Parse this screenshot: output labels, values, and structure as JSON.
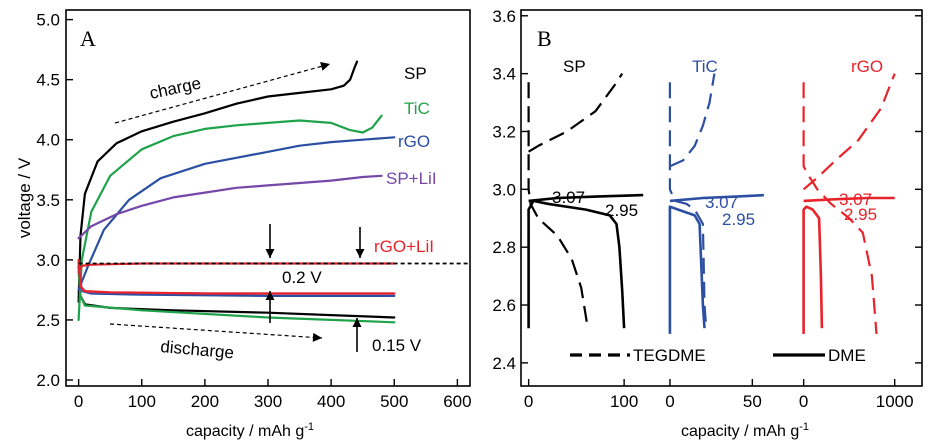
{
  "chart_data": [
    {
      "type": "line",
      "panel_label": "A",
      "xlabel": "capacity / mAh g",
      "xlabel_sup": "-1",
      "ylabel": "voltage / V",
      "xlim": [
        -20,
        620
      ],
      "ylim": [
        1.95,
        5.08
      ],
      "x_ticks": [
        "0",
        "100",
        "200",
        "300",
        "400",
        "500",
        "600"
      ],
      "y_ticks": [
        "2.0",
        "2.5",
        "3.0",
        "3.5",
        "4.0",
        "4.5",
        "5.0"
      ],
      "grid": false,
      "annotations": {
        "charge": "charge",
        "discharge": "discharge",
        "gap_a": "0.2 V",
        "gap_b": "0.15 V"
      },
      "reference_line_y": 2.97,
      "series": [
        {
          "name": "SP",
          "color": "#000000",
          "charge": [
            [
              0,
              2.65
            ],
            [
              3,
              3.2
            ],
            [
              10,
              3.55
            ],
            [
              30,
              3.82
            ],
            [
              60,
              3.97
            ],
            [
              100,
              4.07
            ],
            [
              150,
              4.15
            ],
            [
              200,
              4.22
            ],
            [
              250,
              4.3
            ],
            [
              300,
              4.36
            ],
            [
              350,
              4.39
            ],
            [
              400,
              4.42
            ],
            [
              420,
              4.45
            ],
            [
              430,
              4.5
            ],
            [
              437,
              4.6
            ],
            [
              441,
              4.65
            ]
          ],
          "discharge": [
            [
              0,
              2.95
            ],
            [
              3,
              2.7
            ],
            [
              10,
              2.63
            ],
            [
              50,
              2.6
            ],
            [
              150,
              2.58
            ],
            [
              300,
              2.56
            ],
            [
              400,
              2.54
            ],
            [
              500,
              2.52
            ]
          ]
        },
        {
          "name": "TiC",
          "color": "#1fa34a",
          "charge": [
            [
              0,
              2.5
            ],
            [
              5,
              3.0
            ],
            [
              20,
              3.4
            ],
            [
              50,
              3.7
            ],
            [
              100,
              3.92
            ],
            [
              150,
              4.03
            ],
            [
              200,
              4.09
            ],
            [
              250,
              4.12
            ],
            [
              300,
              4.14
            ],
            [
              350,
              4.16
            ],
            [
              400,
              4.14
            ],
            [
              430,
              4.08
            ],
            [
              450,
              4.06
            ],
            [
              465,
              4.1
            ],
            [
              480,
              4.2
            ]
          ],
          "discharge": [
            [
              0,
              2.9
            ],
            [
              3,
              2.7
            ],
            [
              10,
              2.62
            ],
            [
              100,
              2.58
            ],
            [
              300,
              2.52
            ],
            [
              400,
              2.5
            ],
            [
              500,
              2.48
            ]
          ]
        },
        {
          "name": "rGO",
          "color": "#2c4fa3",
          "charge": [
            [
              0,
              2.75
            ],
            [
              15,
              2.95
            ],
            [
              40,
              3.25
            ],
            [
              80,
              3.5
            ],
            [
              130,
              3.68
            ],
            [
              200,
              3.8
            ],
            [
              250,
              3.85
            ],
            [
              300,
              3.9
            ],
            [
              350,
              3.95
            ],
            [
              400,
              3.98
            ],
            [
              450,
              4.0
            ],
            [
              500,
              4.02
            ]
          ],
          "discharge": [
            [
              0,
              2.95
            ],
            [
              5,
              2.74
            ],
            [
              20,
              2.72
            ],
            [
              100,
              2.71
            ],
            [
              300,
              2.7
            ],
            [
              500,
              2.7
            ]
          ]
        },
        {
          "name": "SP+LiI",
          "color": "#7447a8",
          "charge": [
            [
              0,
              3.18
            ],
            [
              20,
              3.28
            ],
            [
              60,
              3.38
            ],
            [
              100,
              3.45
            ],
            [
              150,
              3.52
            ],
            [
              200,
              3.56
            ],
            [
              250,
              3.6
            ],
            [
              300,
              3.62
            ],
            [
              350,
              3.64
            ],
            [
              400,
              3.66
            ],
            [
              450,
              3.69
            ],
            [
              480,
              3.7
            ]
          ],
          "discharge": [
            [
              0,
              2.98
            ],
            [
              5,
              2.74
            ],
            [
              20,
              2.73
            ],
            [
              200,
              2.72
            ],
            [
              500,
              2.72
            ]
          ]
        },
        {
          "name": "rGO+LiI",
          "color": "#e8232a",
          "charge": [
            [
              0,
              2.9
            ],
            [
              5,
              2.95
            ],
            [
              20,
              2.96
            ],
            [
              100,
              2.97
            ],
            [
              300,
              2.97
            ],
            [
              500,
              2.97
            ]
          ],
          "discharge": [
            [
              0,
              3.0
            ],
            [
              3,
              2.78
            ],
            [
              10,
              2.74
            ],
            [
              50,
              2.73
            ],
            [
              200,
              2.72
            ],
            [
              500,
              2.72
            ]
          ]
        }
      ]
    },
    {
      "type": "line",
      "panel_label": "B",
      "xlabel": "capacity / mAh g",
      "xlabel_sup": "-1",
      "ylim": [
        2.32,
        3.62
      ],
      "y_ticks": [
        "2.4",
        "2.6",
        "2.8",
        "3.0",
        "3.2",
        "3.4",
        "3.6"
      ],
      "x_ticks": [
        {
          "group": "SP",
          "label": "0"
        },
        {
          "group": "SP",
          "label": "100"
        },
        {
          "group": "TiC",
          "label": "0"
        },
        {
          "group": "TiC",
          "label": "50"
        },
        {
          "group": "rGO",
          "label": "0"
        },
        {
          "group": "rGO",
          "label": "1000"
        }
      ],
      "grid": false,
      "legend": {
        "placement": "bottom",
        "dashed": "TEGDME",
        "solid": "DME"
      },
      "annotations": {
        "sp_a": "3.07",
        "sp_b": "2.95",
        "tic_a": "3.07",
        "tic_b": "2.95",
        "rgo_a": "3.07",
        "rgo_b": "2.95"
      },
      "groups": [
        {
          "name": "SP",
          "color": "#000000",
          "xrange": [
            -8,
            125
          ],
          "tegdme": {
            "discharge": [
              [
                0,
                3.37
              ],
              [
                0,
                3.0
              ],
              [
                2,
                2.95
              ],
              [
                10,
                2.9
              ],
              [
                30,
                2.84
              ],
              [
                45,
                2.76
              ],
              [
                55,
                2.66
              ],
              [
                62,
                2.52
              ]
            ],
            "charge": [
              [
                0,
                3.13
              ],
              [
                10,
                3.15
              ],
              [
                40,
                3.2
              ],
              [
                70,
                3.27
              ],
              [
                90,
                3.36
              ],
              [
                98,
                3.4
              ]
            ]
          },
          "dme": {
            "discharge": [
              [
                0,
                2.52
              ],
              [
                0,
                2.93
              ],
              [
                5,
                2.96
              ],
              [
                20,
                2.95
              ],
              [
                60,
                2.93
              ],
              [
                85,
                2.91
              ],
              [
                92,
                2.88
              ],
              [
                95,
                2.8
              ],
              [
                98,
                2.65
              ],
              [
                100,
                2.52
              ]
            ],
            "charge": [
              [
                0,
                2.96
              ],
              [
                30,
                2.97
              ],
              [
                70,
                2.975
              ],
              [
                120,
                2.98
              ]
            ]
          }
        },
        {
          "name": "TiC",
          "color": "#2c4fa3",
          "xrange": [
            -3,
            68
          ],
          "tegdme": {
            "discharge": [
              [
                0,
                3.37
              ],
              [
                0,
                3.0
              ],
              [
                3,
                2.96
              ],
              [
                10,
                2.95
              ],
              [
                15,
                2.93
              ],
              [
                20,
                2.88
              ],
              [
                21,
                2.6
              ],
              [
                22,
                2.52
              ]
            ],
            "charge": [
              [
                0,
                3.08
              ],
              [
                8,
                3.1
              ],
              [
                15,
                3.15
              ],
              [
                20,
                3.22
              ],
              [
                24,
                3.3
              ],
              [
                27,
                3.4
              ]
            ]
          },
          "dme": {
            "discharge": [
              [
                0,
                2.5
              ],
              [
                0,
                2.94
              ],
              [
                5,
                2.93
              ],
              [
                15,
                2.91
              ],
              [
                18,
                2.88
              ],
              [
                20,
                2.6
              ],
              [
                21,
                2.52
              ]
            ],
            "charge": [
              [
                0,
                2.96
              ],
              [
                20,
                2.97
              ],
              [
                40,
                2.975
              ],
              [
                57,
                2.98
              ]
            ]
          }
        },
        {
          "name": "rGO",
          "color": "#e8232a",
          "xrange": [
            -40,
            1300
          ],
          "tegdme": {
            "discharge": [
              [
                0,
                3.37
              ],
              [
                0,
                3.08
              ],
              [
                50,
                3.05
              ],
              [
                150,
                3.0
              ],
              [
                300,
                2.95
              ],
              [
                500,
                2.9
              ],
              [
                650,
                2.85
              ],
              [
                750,
                2.7
              ],
              [
                800,
                2.5
              ]
            ],
            "charge": [
              [
                0,
                3.0
              ],
              [
                150,
                3.04
              ],
              [
                350,
                3.1
              ],
              [
                600,
                3.17
              ],
              [
                850,
                3.28
              ],
              [
                1000,
                3.4
              ]
            ]
          },
          "dme": {
            "discharge": [
              [
                0,
                2.5
              ],
              [
                0,
                2.93
              ],
              [
                30,
                2.94
              ],
              [
                100,
                2.93
              ],
              [
                170,
                2.9
              ],
              [
                190,
                2.7
              ],
              [
                200,
                2.52
              ]
            ],
            "charge": [
              [
                0,
                2.96
              ],
              [
                300,
                2.965
              ],
              [
                700,
                2.97
              ],
              [
                1000,
                2.97
              ]
            ]
          }
        }
      ]
    }
  ]
}
